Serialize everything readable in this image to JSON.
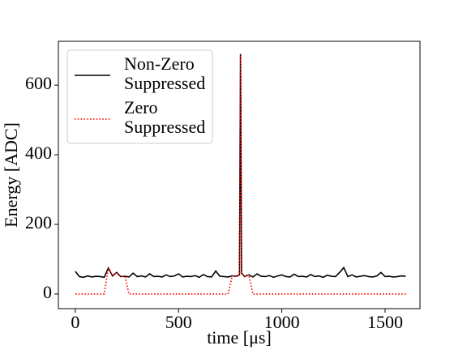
{
  "chart_data": {
    "type": "line",
    "xlabel": "time [μs]",
    "ylabel": "Energy [ADC]",
    "x": [
      0,
      20,
      40,
      60,
      80,
      100,
      120,
      140,
      160,
      180,
      200,
      220,
      240,
      260,
      280,
      300,
      320,
      340,
      360,
      380,
      400,
      420,
      440,
      460,
      480,
      500,
      520,
      540,
      560,
      580,
      600,
      620,
      640,
      660,
      680,
      700,
      720,
      740,
      760,
      780,
      795,
      800,
      805,
      820,
      840,
      860,
      880,
      900,
      920,
      940,
      960,
      980,
      1000,
      1020,
      1040,
      1060,
      1080,
      1100,
      1120,
      1140,
      1160,
      1180,
      1200,
      1220,
      1240,
      1260,
      1280,
      1300,
      1320,
      1340,
      1360,
      1380,
      1400,
      1420,
      1440,
      1460,
      1480,
      1500,
      1520,
      1540,
      1560,
      1580,
      1600
    ],
    "series": [
      {
        "name": "Non-Zero Suppressed",
        "color": "#000000",
        "style": "solid",
        "values": [
          65,
          50,
          48,
          52,
          49,
          51,
          50,
          48,
          75,
          52,
          62,
          50,
          51,
          49,
          60,
          50,
          52,
          49,
          58,
          50,
          51,
          49,
          55,
          50,
          52,
          58,
          49,
          51,
          50,
          53,
          48,
          56,
          50,
          49,
          66,
          51,
          50,
          49,
          52,
          51,
          55,
          690,
          60,
          50,
          55,
          49,
          58,
          51,
          50,
          53,
          48,
          52,
          55,
          50,
          49,
          57,
          50,
          51,
          49,
          56,
          50,
          52,
          48,
          54,
          51,
          50,
          62,
          76,
          50,
          55,
          49,
          51,
          53,
          50,
          49,
          52,
          62,
          50,
          51,
          49,
          50,
          52,
          51
        ]
      },
      {
        "name": "Zero Suppressed",
        "color": "#ff0000",
        "style": "dotted",
        "values": [
          0,
          0,
          0,
          0,
          0,
          0,
          0,
          0,
          75,
          52,
          62,
          50,
          51,
          0,
          0,
          0,
          0,
          0,
          0,
          0,
          0,
          0,
          0,
          0,
          0,
          0,
          0,
          0,
          0,
          0,
          0,
          0,
          0,
          0,
          0,
          0,
          0,
          0,
          52,
          51,
          55,
          690,
          60,
          50,
          55,
          0,
          0,
          0,
          0,
          0,
          0,
          0,
          0,
          0,
          0,
          0,
          0,
          0,
          0,
          0,
          0,
          0,
          0,
          0,
          0,
          0,
          0,
          0,
          0,
          0,
          0,
          0,
          0,
          0,
          0,
          0,
          0,
          0,
          0,
          0,
          0,
          0,
          0
        ]
      }
    ],
    "xlim": [
      -82,
      1669
    ],
    "ylim": [
      -42,
      726
    ],
    "xticks": [
      0,
      500,
      1000,
      1500
    ],
    "yticks": [
      0,
      200,
      400,
      600
    ],
    "legend": "upper left"
  }
}
